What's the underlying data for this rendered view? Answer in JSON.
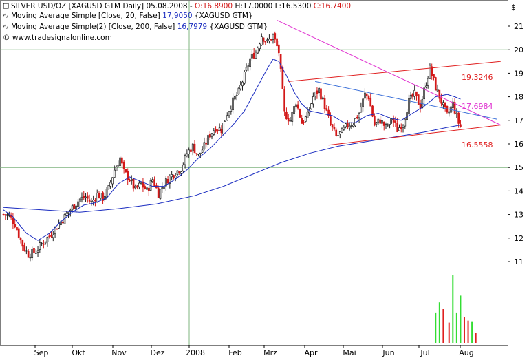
{
  "header": {
    "title_line": "SILVER USD/OZ [XAGUSD GTM  Daily] 05.08.2008 - ",
    "ohlc": {
      "open_label": "O:16.8900",
      "high_label": "H:17.0000",
      "low_label": "L:16.5300",
      "close_label": "C:16.7400"
    },
    "ma1_prefix": "Moving Average Simple [Close, 20, False]",
    "ma1_value": "17,9050",
    "ma1_suffix": "{XAGUSD GTM}",
    "ma2_prefix": "Moving Average Simple(2) [Close, 200, False]",
    "ma2_value": "16,7979",
    "ma2_suffix": "{XAGUSD GTM}",
    "copyright": "© www.tradesignalonline.com"
  },
  "currency_symbol": "$",
  "colors": {
    "up_candle": "#1e1e1e",
    "down_candle": "#d31818",
    "ma20": "#1a2cc0",
    "ma200": "#1a2cc0",
    "channel": "#e02020",
    "resistance_trend": "#e030d0",
    "upper_trend": "#3a6fd8",
    "grid": "#7fb47f",
    "volume_up": "#33dd33",
    "volume_down": "#e02020",
    "ohlc_red": "#d31818"
  },
  "annotations": {
    "channel_top": "19.3246",
    "trend_mid": "17.6984",
    "channel_bottom": "16.5558"
  },
  "chart_data": {
    "type": "candlestick",
    "title": "SILVER USD/OZ [XAGUSD GTM  Daily]",
    "ylim": [
      10.4,
      21.9
    ],
    "y_ticks": [
      11,
      12,
      13,
      14,
      15,
      16,
      17,
      18,
      19,
      20,
      21
    ],
    "x_ticks": [
      "Sep",
      "Okt",
      "Nov",
      "Dez",
      "2008",
      "Feb",
      "Mrz",
      "Apr",
      "Mai",
      "Jun",
      "Jul",
      "Aug"
    ],
    "anchors": [
      {
        "d": 0,
        "v": 13.0
      },
      {
        "d": 3,
        "v": 12.95
      },
      {
        "d": 6,
        "v": 12.6
      },
      {
        "d": 10,
        "v": 11.7
      },
      {
        "d": 13,
        "v": 11.3
      },
      {
        "d": 17,
        "v": 11.45
      },
      {
        "d": 20,
        "v": 11.75
      },
      {
        "d": 24,
        "v": 12.1
      },
      {
        "d": 28,
        "v": 12.5
      },
      {
        "d": 32,
        "v": 12.9
      },
      {
        "d": 36,
        "v": 13.3
      },
      {
        "d": 40,
        "v": 13.65
      },
      {
        "d": 43,
        "v": 13.75
      },
      {
        "d": 46,
        "v": 13.5
      },
      {
        "d": 49,
        "v": 13.85
      },
      {
        "d": 52,
        "v": 13.7
      },
      {
        "d": 55,
        "v": 14.1
      },
      {
        "d": 58,
        "v": 14.9
      },
      {
        "d": 61,
        "v": 15.4
      },
      {
        "d": 63,
        "v": 14.8
      },
      {
        "d": 66,
        "v": 14.5
      },
      {
        "d": 69,
        "v": 14.05
      },
      {
        "d": 72,
        "v": 14.3
      },
      {
        "d": 75,
        "v": 14.0
      },
      {
        "d": 78,
        "v": 14.5
      },
      {
        "d": 81,
        "v": 13.9
      },
      {
        "d": 84,
        "v": 14.3
      },
      {
        "d": 87,
        "v": 14.6
      },
      {
        "d": 90,
        "v": 14.8
      },
      {
        "d": 93,
        "v": 14.95
      },
      {
        "d": 96,
        "v": 15.6
      },
      {
        "d": 99,
        "v": 15.9
      },
      {
        "d": 102,
        "v": 15.5
      },
      {
        "d": 105,
        "v": 15.9
      },
      {
        "d": 108,
        "v": 16.4
      },
      {
        "d": 111,
        "v": 16.7
      },
      {
        "d": 114,
        "v": 16.6
      },
      {
        "d": 117,
        "v": 17.3
      },
      {
        "d": 120,
        "v": 17.8
      },
      {
        "d": 123,
        "v": 18.2
      },
      {
        "d": 126,
        "v": 18.9
      },
      {
        "d": 129,
        "v": 19.6
      },
      {
        "d": 132,
        "v": 19.9
      },
      {
        "d": 135,
        "v": 20.6
      },
      {
        "d": 138,
        "v": 20.3
      },
      {
        "d": 141,
        "v": 20.6
      },
      {
        "d": 144,
        "v": 19.9
      },
      {
        "d": 147,
        "v": 17.3
      },
      {
        "d": 150,
        "v": 17.0
      },
      {
        "d": 153,
        "v": 17.8
      },
      {
        "d": 156,
        "v": 16.9
      },
      {
        "d": 159,
        "v": 17.2
      },
      {
        "d": 162,
        "v": 18.0
      },
      {
        "d": 165,
        "v": 18.3
      },
      {
        "d": 168,
        "v": 17.6
      },
      {
        "d": 171,
        "v": 16.8
      },
      {
        "d": 174,
        "v": 16.3
      },
      {
        "d": 177,
        "v": 16.5
      },
      {
        "d": 180,
        "v": 16.8
      },
      {
        "d": 183,
        "v": 16.9
      },
      {
        "d": 186,
        "v": 17.3
      },
      {
        "d": 189,
        "v": 18.1
      },
      {
        "d": 191,
        "v": 18.0
      },
      {
        "d": 194,
        "v": 16.8
      },
      {
        "d": 197,
        "v": 17.0
      },
      {
        "d": 200,
        "v": 16.7
      },
      {
        "d": 203,
        "v": 17.1
      },
      {
        "d": 206,
        "v": 16.6
      },
      {
        "d": 209,
        "v": 16.9
      },
      {
        "d": 212,
        "v": 17.8
      },
      {
        "d": 215,
        "v": 18.1
      },
      {
        "d": 218,
        "v": 17.6
      },
      {
        "d": 221,
        "v": 18.6
      },
      {
        "d": 223,
        "v": 19.2
      },
      {
        "d": 226,
        "v": 18.4
      },
      {
        "d": 229,
        "v": 17.8
      },
      {
        "d": 232,
        "v": 17.2
      },
      {
        "d": 235,
        "v": 17.7
      },
      {
        "d": 238,
        "v": 16.9
      },
      {
        "d": 239,
        "v": 16.74
      }
    ],
    "ma20": [
      {
        "d": 0,
        "v": 13.2
      },
      {
        "d": 5,
        "v": 12.9
      },
      {
        "d": 12,
        "v": 12.2
      },
      {
        "d": 18,
        "v": 11.9
      },
      {
        "d": 24,
        "v": 12.2
      },
      {
        "d": 30,
        "v": 12.7
      },
      {
        "d": 36,
        "v": 13.1
      },
      {
        "d": 42,
        "v": 13.4
      },
      {
        "d": 48,
        "v": 13.5
      },
      {
        "d": 54,
        "v": 13.7
      },
      {
        "d": 60,
        "v": 14.3
      },
      {
        "d": 66,
        "v": 14.6
      },
      {
        "d": 72,
        "v": 14.4
      },
      {
        "d": 78,
        "v": 14.2
      },
      {
        "d": 84,
        "v": 14.2
      },
      {
        "d": 90,
        "v": 14.5
      },
      {
        "d": 96,
        "v": 14.9
      },
      {
        "d": 102,
        "v": 15.4
      },
      {
        "d": 108,
        "v": 15.8
      },
      {
        "d": 114,
        "v": 16.3
      },
      {
        "d": 120,
        "v": 16.8
      },
      {
        "d": 126,
        "v": 17.4
      },
      {
        "d": 132,
        "v": 18.3
      },
      {
        "d": 138,
        "v": 19.2
      },
      {
        "d": 141,
        "v": 19.6
      },
      {
        "d": 144,
        "v": 19.5
      },
      {
        "d": 148,
        "v": 18.9
      },
      {
        "d": 152,
        "v": 18.2
      },
      {
        "d": 156,
        "v": 17.7
      },
      {
        "d": 160,
        "v": 17.4
      },
      {
        "d": 166,
        "v": 17.3
      },
      {
        "d": 172,
        "v": 17.2
      },
      {
        "d": 178,
        "v": 16.9
      },
      {
        "d": 184,
        "v": 16.9
      },
      {
        "d": 190,
        "v": 17.2
      },
      {
        "d": 196,
        "v": 17.3
      },
      {
        "d": 202,
        "v": 17.1
      },
      {
        "d": 208,
        "v": 17.0
      },
      {
        "d": 214,
        "v": 17.3
      },
      {
        "d": 220,
        "v": 17.6
      },
      {
        "d": 226,
        "v": 18.0
      },
      {
        "d": 232,
        "v": 18.1
      },
      {
        "d": 236,
        "v": 18.0
      },
      {
        "d": 239,
        "v": 17.9
      }
    ],
    "ma200": [
      {
        "d": 0,
        "v": 13.3
      },
      {
        "d": 20,
        "v": 13.2
      },
      {
        "d": 40,
        "v": 13.1
      },
      {
        "d": 60,
        "v": 13.25
      },
      {
        "d": 80,
        "v": 13.45
      },
      {
        "d": 100,
        "v": 13.8
      },
      {
        "d": 115,
        "v": 14.2
      },
      {
        "d": 130,
        "v": 14.7
      },
      {
        "d": 145,
        "v": 15.2
      },
      {
        "d": 160,
        "v": 15.6
      },
      {
        "d": 175,
        "v": 15.9
      },
      {
        "d": 190,
        "v": 16.1
      },
      {
        "d": 205,
        "v": 16.3
      },
      {
        "d": 220,
        "v": 16.5
      },
      {
        "d": 232,
        "v": 16.7
      },
      {
        "d": 239,
        "v": 16.8
      }
    ],
    "trendlines": [
      {
        "name": "resistance",
        "from": {
          "d": 143,
          "v": 21.25
        },
        "to": {
          "d": 260,
          "v": 16.8
        }
      },
      {
        "name": "channel_top",
        "from": {
          "d": 149,
          "v": 18.65
        },
        "to": {
          "d": 260,
          "v": 19.5
        }
      },
      {
        "name": "channel_bottom",
        "from": {
          "d": 170,
          "v": 15.95
        },
        "to": {
          "d": 260,
          "v": 16.8
        }
      },
      {
        "name": "upper_trend",
        "from": {
          "d": 163,
          "v": 18.65
        },
        "to": {
          "d": 258,
          "v": 17.05
        }
      }
    ],
    "volume": [
      {
        "d": 226,
        "v": 0.45,
        "up": true
      },
      {
        "d": 228,
        "v": 0.6,
        "up": true
      },
      {
        "d": 230,
        "v": 0.5,
        "up": false
      },
      {
        "d": 233,
        "v": 0.3,
        "up": false
      },
      {
        "d": 235,
        "v": 1.0,
        "up": true
      },
      {
        "d": 237,
        "v": 0.45,
        "up": true
      },
      {
        "d": 239,
        "v": 0.7,
        "up": true
      },
      {
        "d": 241,
        "v": 0.38,
        "up": false
      },
      {
        "d": 243,
        "v": 0.33,
        "up": false
      },
      {
        "d": 245,
        "v": 0.32,
        "up": true
      },
      {
        "d": 247,
        "v": 0.15,
        "up": false
      }
    ]
  }
}
